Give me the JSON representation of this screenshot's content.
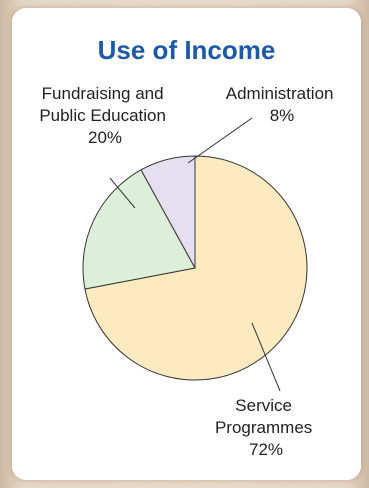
{
  "chart_data": {
    "type": "pie",
    "title": "Use of Income",
    "slices": [
      {
        "label_lines": [
          "Service",
          "Programmes",
          "72%"
        ],
        "value": 72,
        "color": "#fdeac0"
      },
      {
        "label_lines": [
          "Fundraising and",
          "Public Education",
          "20%"
        ],
        "value": 20,
        "color": "#dcefd8"
      },
      {
        "label_lines": [
          "Administration",
          "8%"
        ],
        "value": 8,
        "color": "#e5dff0"
      }
    ],
    "title_color": "#1d5aa6",
    "border_color": "#333333"
  }
}
